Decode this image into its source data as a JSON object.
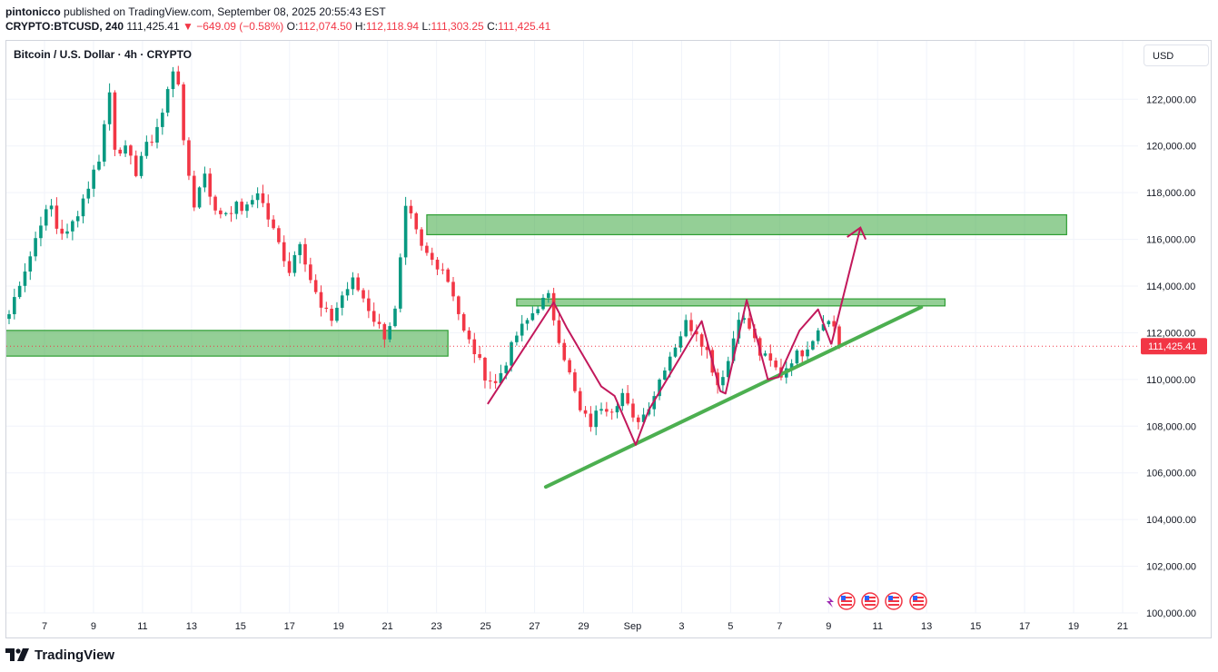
{
  "header": {
    "publisher": "pintonicco",
    "published_text": "published on TradingView.com, September 08, 2025 20:55:43 EST",
    "symbol_interval": "CRYPTO:BTCUSD, 240",
    "last_price": "111,425.41",
    "change": "▼ −649.09 (−0.58%)",
    "o_label": "O:",
    "o_value": "112,074.50",
    "h_label": "H:",
    "h_value": "112,118.94",
    "l_label": "L:",
    "l_value": "111,303.25",
    "c_label": "C:",
    "c_value": "111,425.41"
  },
  "legend_title": "Bitcoin / U.S. Dollar · 4h · CRYPTO",
  "currency_button": "USD",
  "footer": {
    "brand": "TradingView"
  },
  "colors": {
    "up": "#089981",
    "down": "#f23645",
    "zone": "#4caf50",
    "pattern": "#c2185b",
    "trendline": "#4caf50"
  },
  "chart_data": {
    "type": "candlestick",
    "title": "Bitcoin / U.S. Dollar · 4h · CRYPTO",
    "ylim": [
      100000,
      124500
    ],
    "y_ticks": [
      100000,
      102000,
      104000,
      106000,
      108000,
      110000,
      112000,
      114000,
      116000,
      118000,
      120000,
      122000
    ],
    "y_tick_labels": [
      "100,000.00",
      "102,000.00",
      "104,000.00",
      "106,000.00",
      "108,000.00",
      "110,000.00",
      "112,000.00",
      "114,000.00",
      "116,000.00",
      "118,000.00",
      "120,000.00",
      "122,000.00"
    ],
    "x_domain_days": [
      6.2,
      21.9
    ],
    "x_ticks": [
      {
        "day": 7,
        "label": "7"
      },
      {
        "day": 8,
        "label": "9"
      },
      {
        "day": 9,
        "label": "11"
      },
      {
        "day": 10,
        "label": "13"
      },
      {
        "day": 11,
        "label": "15"
      },
      {
        "day": 12,
        "label": "17"
      },
      {
        "day": 13,
        "label": "19"
      },
      {
        "day": 14,
        "label": "21"
      },
      {
        "day": 15,
        "label": "23"
      },
      {
        "day": 16,
        "label": "25"
      },
      {
        "day": 17,
        "label": "27"
      },
      {
        "day": 18,
        "label": "29"
      },
      {
        "day": 19,
        "label": "Sep"
      },
      {
        "day": 20,
        "label": "3"
      },
      {
        "day": 21,
        "label": "5"
      }
    ],
    "x_tick_labels_full": [
      "7",
      "9",
      "11",
      "13",
      "15",
      "17",
      "19",
      "21",
      "23",
      "25",
      "27",
      "29",
      "Sep",
      "3",
      "5",
      "7",
      "9",
      "11",
      "13",
      "15",
      "17",
      "19",
      "21"
    ],
    "x_tick_index_range": [
      0,
      22
    ],
    "price_path": [
      [
        0,
        112800
      ],
      [
        2,
        114200
      ],
      [
        4,
        115300
      ],
      [
        6,
        116800
      ],
      [
        8,
        117400
      ],
      [
        9,
        116500
      ],
      [
        11,
        116200
      ],
      [
        13,
        117200
      ],
      [
        15,
        118300
      ],
      [
        17,
        119500
      ],
      [
        19,
        122300
      ],
      [
        20,
        120000
      ],
      [
        22,
        119800
      ],
      [
        24,
        118900
      ],
      [
        25,
        119600
      ],
      [
        27,
        120300
      ],
      [
        29,
        121400
      ],
      [
        31,
        123300
      ],
      [
        32,
        122800
      ],
      [
        33,
        120000
      ],
      [
        35,
        117500
      ],
      [
        37,
        118900
      ],
      [
        39,
        117100
      ],
      [
        41,
        117200
      ],
      [
        43,
        117400
      ],
      [
        45,
        117300
      ],
      [
        47,
        118100
      ],
      [
        49,
        116900
      ],
      [
        51,
        115800
      ],
      [
        53,
        114700
      ],
      [
        55,
        116000
      ],
      [
        57,
        114300
      ],
      [
        59,
        113000
      ],
      [
        61,
        112600
      ],
      [
        63,
        113600
      ],
      [
        65,
        114200
      ],
      [
        67,
        113500
      ],
      [
        69,
        112600
      ],
      [
        71,
        111900
      ],
      [
        73,
        112900
      ],
      [
        75,
        117200
      ],
      [
        76,
        116900
      ],
      [
        78,
        115600
      ],
      [
        80,
        115100
      ],
      [
        82,
        114800
      ],
      [
        84,
        113700
      ],
      [
        86,
        112000
      ],
      [
        88,
        111200
      ],
      [
        90,
        110200
      ],
      [
        92,
        109800
      ],
      [
        94,
        110800
      ],
      [
        96,
        111900
      ],
      [
        98,
        112500
      ],
      [
        100,
        113200
      ],
      [
        102,
        113500
      ],
      [
        104,
        111800
      ],
      [
        106,
        110200
      ],
      [
        108,
        108600
      ],
      [
        110,
        108100
      ],
      [
        112,
        108900
      ],
      [
        114,
        108800
      ],
      [
        116,
        109400
      ],
      [
        118,
        108200
      ],
      [
        120,
        108500
      ],
      [
        122,
        109400
      ],
      [
        124,
        110600
      ],
      [
        126,
        111500
      ],
      [
        128,
        112400
      ],
      [
        130,
        112100
      ],
      [
        132,
        111200
      ],
      [
        134,
        109800
      ],
      [
        136,
        110800
      ],
      [
        138,
        112800
      ],
      [
        140,
        112200
      ],
      [
        142,
        111100
      ],
      [
        144,
        110700
      ],
      [
        146,
        110200
      ],
      [
        148,
        110900
      ],
      [
        150,
        111200
      ],
      [
        152,
        111800
      ],
      [
        154,
        112600
      ],
      [
        156,
        112300
      ],
      [
        157,
        111425
      ]
    ],
    "price_candle_count": 158,
    "x_candle_range": [
      7,
      928
    ],
    "current_price": 111425.41,
    "current_price_label": "111,425.41",
    "zones": [
      {
        "name": "upper-resistance-zone",
        "from_candle": 79,
        "to_candle": 200,
        "ylow": 116200,
        "yhigh": 117050
      },
      {
        "name": "mid-resistance-zone",
        "from_candle": 96,
        "to_candle": 177,
        "ylow": 113150,
        "yhigh": 113450
      },
      {
        "name": "support-zone",
        "from_candle": -2,
        "to_candle": 83,
        "ylow": 111000,
        "yhigh": 112100
      }
    ],
    "pattern_line": [
      [
        90.5,
        108950
      ],
      [
        103,
        113300
      ],
      [
        105.5,
        112200
      ],
      [
        112,
        109700
      ],
      [
        114.5,
        109300
      ],
      [
        118.5,
        107200
      ],
      [
        121,
        108700
      ],
      [
        131,
        112500
      ],
      [
        134.5,
        109500
      ],
      [
        135.5,
        109400
      ],
      [
        139.5,
        113400
      ],
      [
        143.5,
        110000
      ],
      [
        145.5,
        110100
      ],
      [
        149.5,
        112100
      ],
      [
        153,
        113000
      ],
      [
        155.5,
        111500
      ]
    ],
    "projection_arrow": [
      [
        155.5,
        111500
      ],
      [
        161,
        116500
      ]
    ],
    "projection_arrow_head": [
      [
        158.5,
        116100
      ],
      [
        161,
        116500
      ],
      [
        162,
        116000
      ]
    ],
    "trendline": [
      [
        101.5,
        105400
      ],
      [
        172.5,
        113100
      ]
    ]
  }
}
